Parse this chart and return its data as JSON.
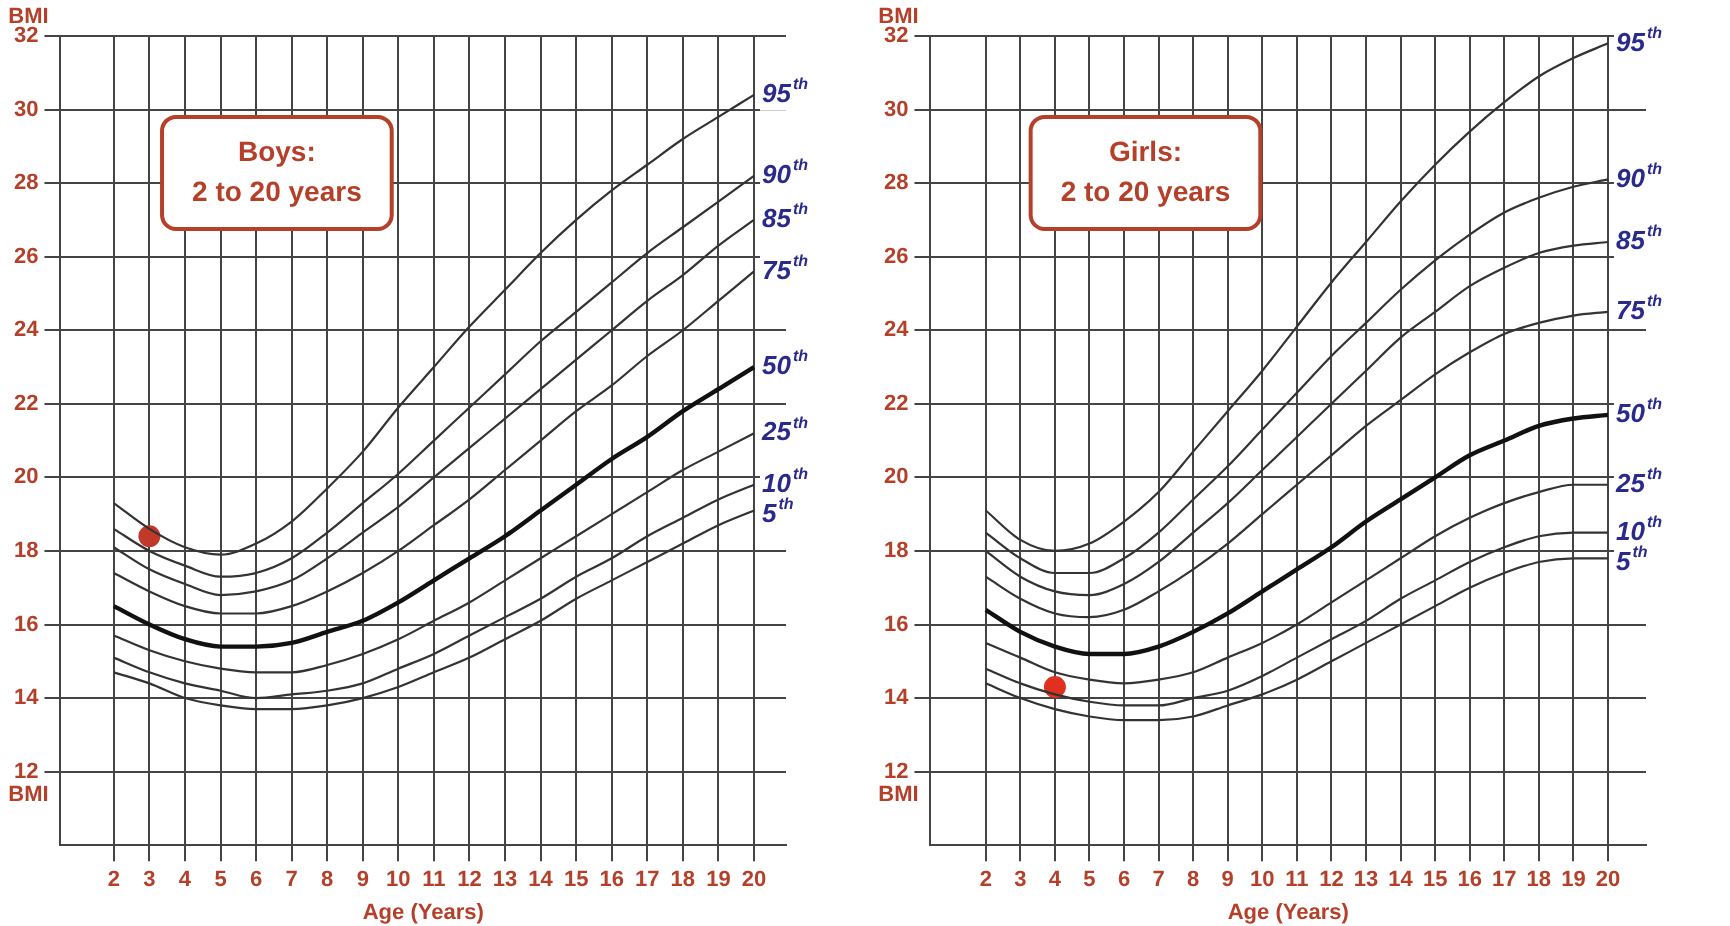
{
  "chart_data": [
    {
      "type": "line",
      "title": "Boys:\n2 to 20 years",
      "xlabel": "Age (Years)",
      "ylabel": "BMI",
      "xlim": [
        0.5,
        20.9
      ],
      "ylim": [
        10,
        32
      ],
      "xticks": [
        2,
        3,
        4,
        5,
        6,
        7,
        8,
        9,
        10,
        11,
        12,
        13,
        14,
        15,
        16,
        17,
        18,
        19,
        20
      ],
      "yticks": [
        12,
        14,
        16,
        18,
        20,
        22,
        24,
        26,
        28,
        30,
        32
      ],
      "grid": true,
      "legend": false,
      "x": [
        2,
        3,
        4,
        5,
        6,
        7,
        8,
        9,
        10,
        11,
        12,
        13,
        14,
        15,
        16,
        17,
        18,
        19,
        20
      ],
      "series": [
        {
          "name": "95$^{th}$",
          "color": "#333333",
          "values": [
            19.3,
            18.6,
            18.1,
            17.9,
            18.2,
            18.8,
            19.7,
            20.7,
            21.9,
            23.0,
            24.1,
            25.1,
            26.1,
            27.0,
            27.8,
            28.5,
            29.2,
            29.8,
            30.4
          ]
        },
        {
          "name": "90$^{th}$",
          "color": "#333333",
          "values": [
            18.6,
            18.0,
            17.6,
            17.3,
            17.4,
            17.8,
            18.5,
            19.3,
            20.1,
            21.0,
            21.9,
            22.8,
            23.7,
            24.5,
            25.3,
            26.1,
            26.8,
            27.5,
            28.2
          ]
        },
        {
          "name": "85$^{th}$",
          "color": "#333333",
          "values": [
            18.1,
            17.5,
            17.1,
            16.8,
            16.9,
            17.2,
            17.8,
            18.5,
            19.2,
            20.0,
            20.8,
            21.6,
            22.4,
            23.2,
            24.0,
            24.8,
            25.5,
            26.3,
            27.0
          ]
        },
        {
          "name": "75$^{th}$",
          "color": "#333333",
          "values": [
            17.4,
            16.9,
            16.5,
            16.3,
            16.3,
            16.5,
            16.9,
            17.4,
            18.0,
            18.7,
            19.4,
            20.2,
            21.0,
            21.8,
            22.5,
            23.3,
            24.0,
            24.8,
            25.6
          ]
        },
        {
          "name": "50$^{th}$",
          "color": "#111111",
          "values": [
            16.5,
            16.0,
            15.6,
            15.4,
            15.4,
            15.5,
            15.8,
            16.1,
            16.6,
            17.2,
            17.8,
            18.4,
            19.1,
            19.8,
            20.5,
            21.1,
            21.8,
            22.4,
            23.0
          ]
        },
        {
          "name": "25$^{th}$",
          "color": "#333333",
          "values": [
            15.7,
            15.3,
            15.0,
            14.8,
            14.7,
            14.7,
            14.9,
            15.2,
            15.6,
            16.1,
            16.6,
            17.2,
            17.8,
            18.4,
            19.0,
            19.6,
            20.2,
            20.7,
            21.2
          ]
        },
        {
          "name": "10$^{th}$",
          "color": "#333333",
          "values": [
            15.1,
            14.7,
            14.4,
            14.2,
            14.0,
            14.1,
            14.2,
            14.4,
            14.8,
            15.2,
            15.7,
            16.2,
            16.7,
            17.3,
            17.8,
            18.4,
            18.9,
            19.4,
            19.8
          ]
        },
        {
          "name": "5$^{th}$",
          "color": "#333333",
          "values": [
            14.7,
            14.4,
            14.0,
            13.8,
            13.7,
            13.7,
            13.8,
            14.0,
            14.3,
            14.7,
            15.1,
            15.6,
            16.1,
            16.7,
            17.2,
            17.7,
            18.2,
            18.7,
            19.1
          ]
        },
        {
          "type": "scatter",
          "marker": "circle",
          "color": "#c0392b",
          "x": [
            3
          ],
          "values": [
            18.4
          ]
        }
      ]
    },
    {
      "type": "line",
      "title": "Girls:\n2 to 20 years",
      "xlabel": "Age (Years)",
      "ylabel": "BMI",
      "xlim": [
        0.4,
        21.1
      ],
      "ylim": [
        10,
        32
      ],
      "xticks": [
        2,
        3,
        4,
        5,
        6,
        7,
        8,
        9,
        10,
        11,
        12,
        13,
        14,
        15,
        16,
        17,
        18,
        19,
        20
      ],
      "yticks": [
        12,
        14,
        16,
        18,
        20,
        22,
        24,
        26,
        28,
        30,
        32
      ],
      "grid": true,
      "legend": false,
      "x": [
        2,
        3,
        4,
        5,
        6,
        7,
        8,
        9,
        10,
        11,
        12,
        13,
        14,
        15,
        16,
        17,
        18,
        19,
        20
      ],
      "series": [
        {
          "name": "95$^{th}$",
          "color": "#333333",
          "values": [
            19.1,
            18.3,
            18.0,
            18.2,
            18.8,
            19.6,
            20.7,
            21.8,
            22.9,
            24.1,
            25.3,
            26.4,
            27.5,
            28.5,
            29.4,
            30.2,
            30.9,
            31.4,
            31.8
          ]
        },
        {
          "name": "90$^{th}$",
          "color": "#333333",
          "values": [
            18.5,
            17.8,
            17.4,
            17.4,
            17.8,
            18.5,
            19.4,
            20.3,
            21.3,
            22.3,
            23.3,
            24.2,
            25.1,
            25.9,
            26.6,
            27.2,
            27.6,
            27.9,
            28.1
          ]
        },
        {
          "name": "85$^{th}$",
          "color": "#333333",
          "values": [
            18.0,
            17.3,
            16.9,
            16.8,
            17.1,
            17.7,
            18.5,
            19.3,
            20.2,
            21.1,
            22.0,
            22.9,
            23.8,
            24.5,
            25.2,
            25.7,
            26.1,
            26.3,
            26.4
          ]
        },
        {
          "name": "75$^{th}$",
          "color": "#333333",
          "values": [
            17.3,
            16.7,
            16.3,
            16.2,
            16.4,
            16.9,
            17.5,
            18.2,
            19.0,
            19.8,
            20.6,
            21.4,
            22.1,
            22.8,
            23.4,
            23.9,
            24.2,
            24.4,
            24.5
          ]
        },
        {
          "name": "50$^{th}$",
          "color": "#111111",
          "values": [
            16.4,
            15.8,
            15.4,
            15.2,
            15.2,
            15.4,
            15.8,
            16.3,
            16.9,
            17.5,
            18.1,
            18.8,
            19.4,
            20.0,
            20.6,
            21.0,
            21.4,
            21.6,
            21.7
          ]
        },
        {
          "name": "25$^{th}$",
          "color": "#333333",
          "values": [
            15.5,
            15.1,
            14.7,
            14.5,
            14.4,
            14.5,
            14.7,
            15.1,
            15.5,
            16.0,
            16.6,
            17.2,
            17.8,
            18.4,
            18.9,
            19.3,
            19.6,
            19.8,
            19.8
          ]
        },
        {
          "name": "10$^{th}$",
          "color": "#333333",
          "values": [
            14.8,
            14.4,
            14.1,
            13.9,
            13.8,
            13.8,
            14.0,
            14.2,
            14.6,
            15.1,
            15.6,
            16.1,
            16.7,
            17.2,
            17.7,
            18.1,
            18.4,
            18.5,
            18.5
          ]
        },
        {
          "name": "5$^{th}$",
          "color": "#333333",
          "values": [
            14.4,
            14.0,
            13.7,
            13.5,
            13.4,
            13.4,
            13.5,
            13.8,
            14.1,
            14.5,
            15.0,
            15.5,
            16.0,
            16.5,
            17.0,
            17.4,
            17.7,
            17.8,
            17.8
          ]
        },
        {
          "type": "scatter",
          "marker": "circle",
          "color": "#e03020",
          "x": [
            4
          ],
          "values": [
            14.3
          ]
        }
      ]
    }
  ]
}
